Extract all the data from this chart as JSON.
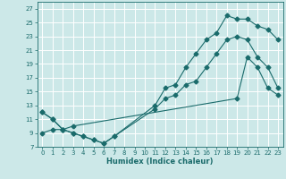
{
  "xlabel": "Humidex (Indice chaleur)",
  "background_color": "#cce8e8",
  "grid_color": "#ffffff",
  "line_color": "#1a6b6b",
  "xlim": [
    -0.5,
    23.5
  ],
  "ylim": [
    7,
    28
  ],
  "xticks": [
    0,
    1,
    2,
    3,
    4,
    5,
    6,
    7,
    8,
    9,
    10,
    11,
    12,
    13,
    14,
    15,
    16,
    17,
    18,
    19,
    20,
    21,
    22,
    23
  ],
  "yticks": [
    7,
    9,
    11,
    13,
    15,
    17,
    19,
    21,
    23,
    25,
    27
  ],
  "line1_x": [
    0,
    1,
    2,
    3,
    4,
    5,
    6,
    7,
    11,
    12,
    13,
    14,
    15,
    16,
    17,
    18,
    19,
    20,
    21,
    22,
    23
  ],
  "line1_y": [
    12,
    11,
    9.5,
    9,
    8.5,
    8,
    7.5,
    8.5,
    13,
    15.5,
    16,
    18.5,
    20.5,
    22.5,
    23.5,
    26,
    25.5,
    25.5,
    24.5,
    24,
    22.5
  ],
  "line2_x": [
    0,
    1,
    2,
    3,
    4,
    5,
    6,
    7,
    11,
    12,
    13,
    14,
    15,
    16,
    17,
    18,
    19,
    20,
    21,
    22,
    23
  ],
  "line2_y": [
    12,
    11,
    9.5,
    9,
    8.5,
    8,
    7.5,
    8.5,
    12.5,
    14,
    14.5,
    16,
    16.5,
    18.5,
    20.5,
    22.5,
    23,
    22.5,
    20,
    18.5,
    15.5
  ],
  "line3_x": [
    0,
    1,
    2,
    3,
    19,
    20,
    21,
    22,
    23
  ],
  "line3_y": [
    9,
    9.5,
    9.5,
    10,
    14,
    20,
    18.5,
    15.5,
    14.5
  ]
}
